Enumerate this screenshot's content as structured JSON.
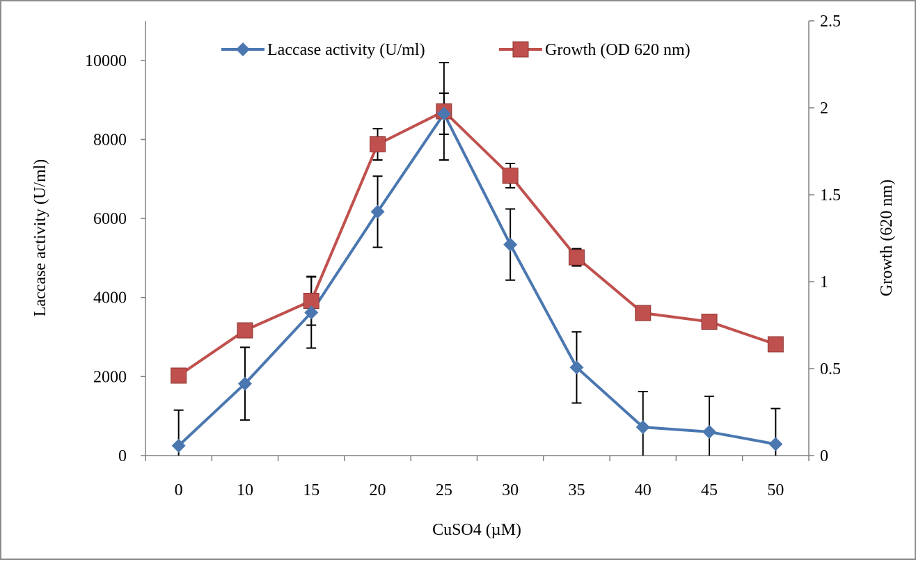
{
  "chart_data": {
    "type": "line",
    "categories": [
      "0",
      "10",
      "15",
      "20",
      "25",
      "30",
      "35",
      "40",
      "45",
      "50"
    ],
    "xlabel": "CuSO4 (µM)",
    "y_left": {
      "label": "Laccase  activity (U/ml)",
      "ticks": [
        "0",
        "2000",
        "4000",
        "6000",
        "8000",
        "10000"
      ],
      "tick_values": [
        0,
        2000,
        4000,
        6000,
        8000,
        10000
      ],
      "lim": [
        0,
        11000
      ]
    },
    "y_right": {
      "label": "Growth  (620  nm)",
      "ticks": [
        "0",
        "0.5",
        "1",
        "1.5",
        "2",
        "2.5"
      ],
      "tick_values": [
        0,
        0.5,
        1,
        1.5,
        2,
        2.5
      ],
      "lim": [
        0,
        2.5
      ]
    },
    "series": [
      {
        "name": "Laccase activity (U/ml)",
        "axis": "left",
        "color": "#4a77b0",
        "marker": "diamond",
        "values": [
          250,
          1820,
          3620,
          6170,
          8650,
          5340,
          2230,
          720,
          600,
          290
        ],
        "error": [
          900,
          920,
          900,
          900,
          520,
          900,
          900,
          900,
          900,
          900
        ]
      },
      {
        "name": "Growth (OD 620 nm)",
        "axis": "right",
        "color": "#c0504d",
        "marker": "square",
        "values": [
          0.46,
          0.72,
          0.89,
          1.79,
          1.98,
          1.61,
          1.14,
          0.82,
          0.77,
          0.64
        ],
        "error": [
          0,
          0,
          0.14,
          0.09,
          0.28,
          0.07,
          0.05,
          0,
          0,
          0
        ]
      }
    ],
    "legend_position": "top-center",
    "grid": false
  }
}
